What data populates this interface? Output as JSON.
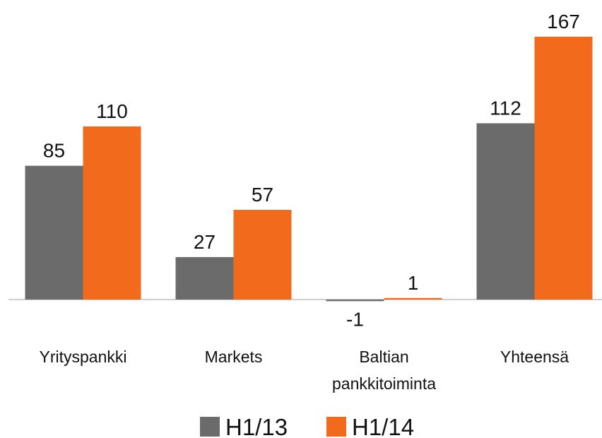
{
  "chart_data": {
    "type": "bar",
    "categories": [
      "Yrityspankki",
      "Markets",
      "Baltian\npankkitoiminta",
      "Yhteensä"
    ],
    "series": [
      {
        "name": "H1/13",
        "color": "#6b6b6b",
        "values": [
          85,
          27,
          -1,
          112
        ]
      },
      {
        "name": "H1/14",
        "color": "#f26a1b",
        "values": [
          110,
          57,
          1,
          167
        ]
      }
    ],
    "ylim": [
      -20,
      180
    ]
  }
}
